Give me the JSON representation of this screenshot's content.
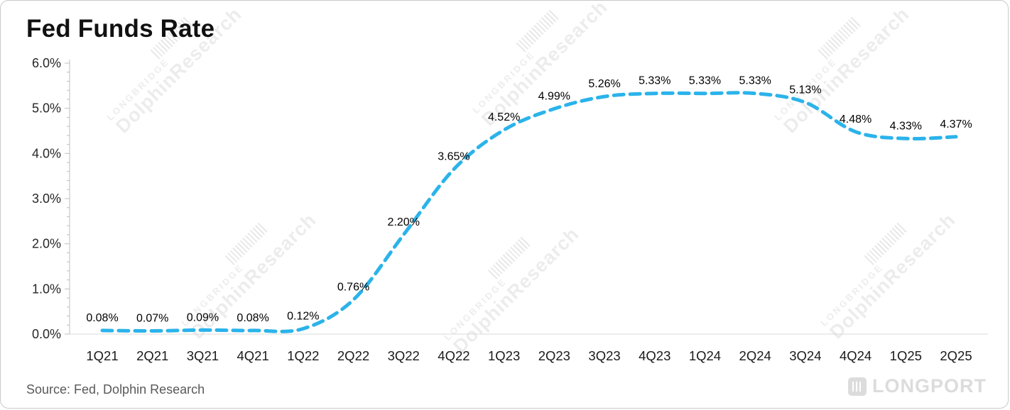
{
  "chart_data": {
    "type": "line",
    "title": "Fed Funds Rate",
    "categories": [
      "1Q21",
      "2Q21",
      "3Q21",
      "4Q21",
      "1Q22",
      "2Q22",
      "3Q22",
      "4Q22",
      "1Q23",
      "2Q23",
      "3Q23",
      "4Q23",
      "1Q24",
      "2Q24",
      "3Q24",
      "4Q24",
      "1Q25",
      "2Q25"
    ],
    "values": [
      0.08,
      0.07,
      0.09,
      0.08,
      0.12,
      0.76,
      2.2,
      3.65,
      4.52,
      4.99,
      5.26,
      5.33,
      5.33,
      5.33,
      5.13,
      4.48,
      4.33,
      4.37
    ],
    "point_labels": [
      "0.08%",
      "0.07%",
      "0.09%",
      "0.08%",
      "0.12%",
      "0.76%",
      "2.20%",
      "3.65%",
      "4.52%",
      "4.99%",
      "5.26%",
      "5.33%",
      "5.33%",
      "5.33%",
      "5.13%",
      "4.48%",
      "4.33%",
      "4.37%"
    ],
    "ylim": [
      0,
      6
    ],
    "ytick_step": 1.0,
    "ytick_minor_step": 0.2,
    "ytick_labels": [
      "0.0%",
      "1.0%",
      "2.0%",
      "3.0%",
      "4.0%",
      "5.0%",
      "6.0%"
    ],
    "line_color": "#2bb3ea",
    "line_style": "dashed",
    "grid": false,
    "legend": "none"
  },
  "source": "Source: Fed, Dolphin Research",
  "watermark": {
    "brand": "LONGBRIDGE",
    "name": "DolphinResearch",
    "logo": "LONGPORT"
  }
}
